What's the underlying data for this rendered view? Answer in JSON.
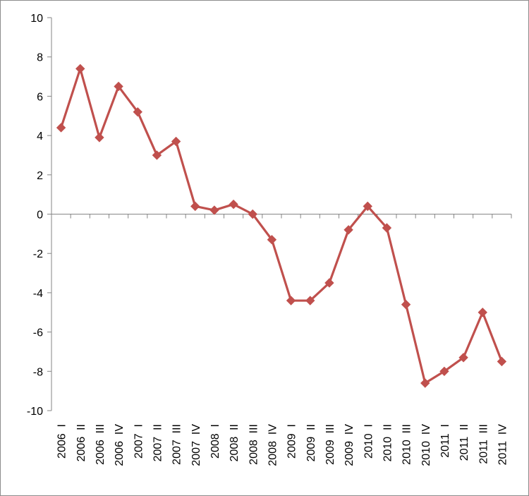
{
  "chart_data": {
    "type": "line",
    "title": "",
    "xlabel": "",
    "ylabel": "",
    "ylim": [
      -10,
      10
    ],
    "ytick_step": 2,
    "yticks": [
      "10",
      "8",
      "6",
      "4",
      "2",
      "0",
      "-2",
      "-4",
      "-6",
      "-8",
      "-10"
    ],
    "grid": false,
    "legend": "none",
    "categories": [
      "2006  I",
      "2006  II",
      "2006  III",
      "2006  IV",
      "2007  I",
      "2007  II",
      "2007  III",
      "2007  IV",
      "2008  I",
      "2008  II",
      "2008  III",
      "2008  IV",
      "2009  I",
      "2009  II",
      "2009  III",
      "2009  IV",
      "2010  I",
      "2010  II",
      "2010  III",
      "2010  IV",
      "2011  I",
      "2011  II",
      "2011  III",
      "2011  IV"
    ],
    "series": [
      {
        "color": "#c0504d",
        "marker": "diamond",
        "values": [
          4.4,
          7.4,
          3.9,
          6.5,
          5.2,
          3.0,
          3.7,
          0.4,
          0.2,
          0.5,
          0.0,
          -1.3,
          -4.4,
          -4.4,
          -3.5,
          -0.8,
          0.4,
          -0.7,
          -4.6,
          -8.6,
          -8.0,
          -7.3,
          -5.0,
          -7.5
        ]
      }
    ],
    "axis_color": "#868686"
  }
}
